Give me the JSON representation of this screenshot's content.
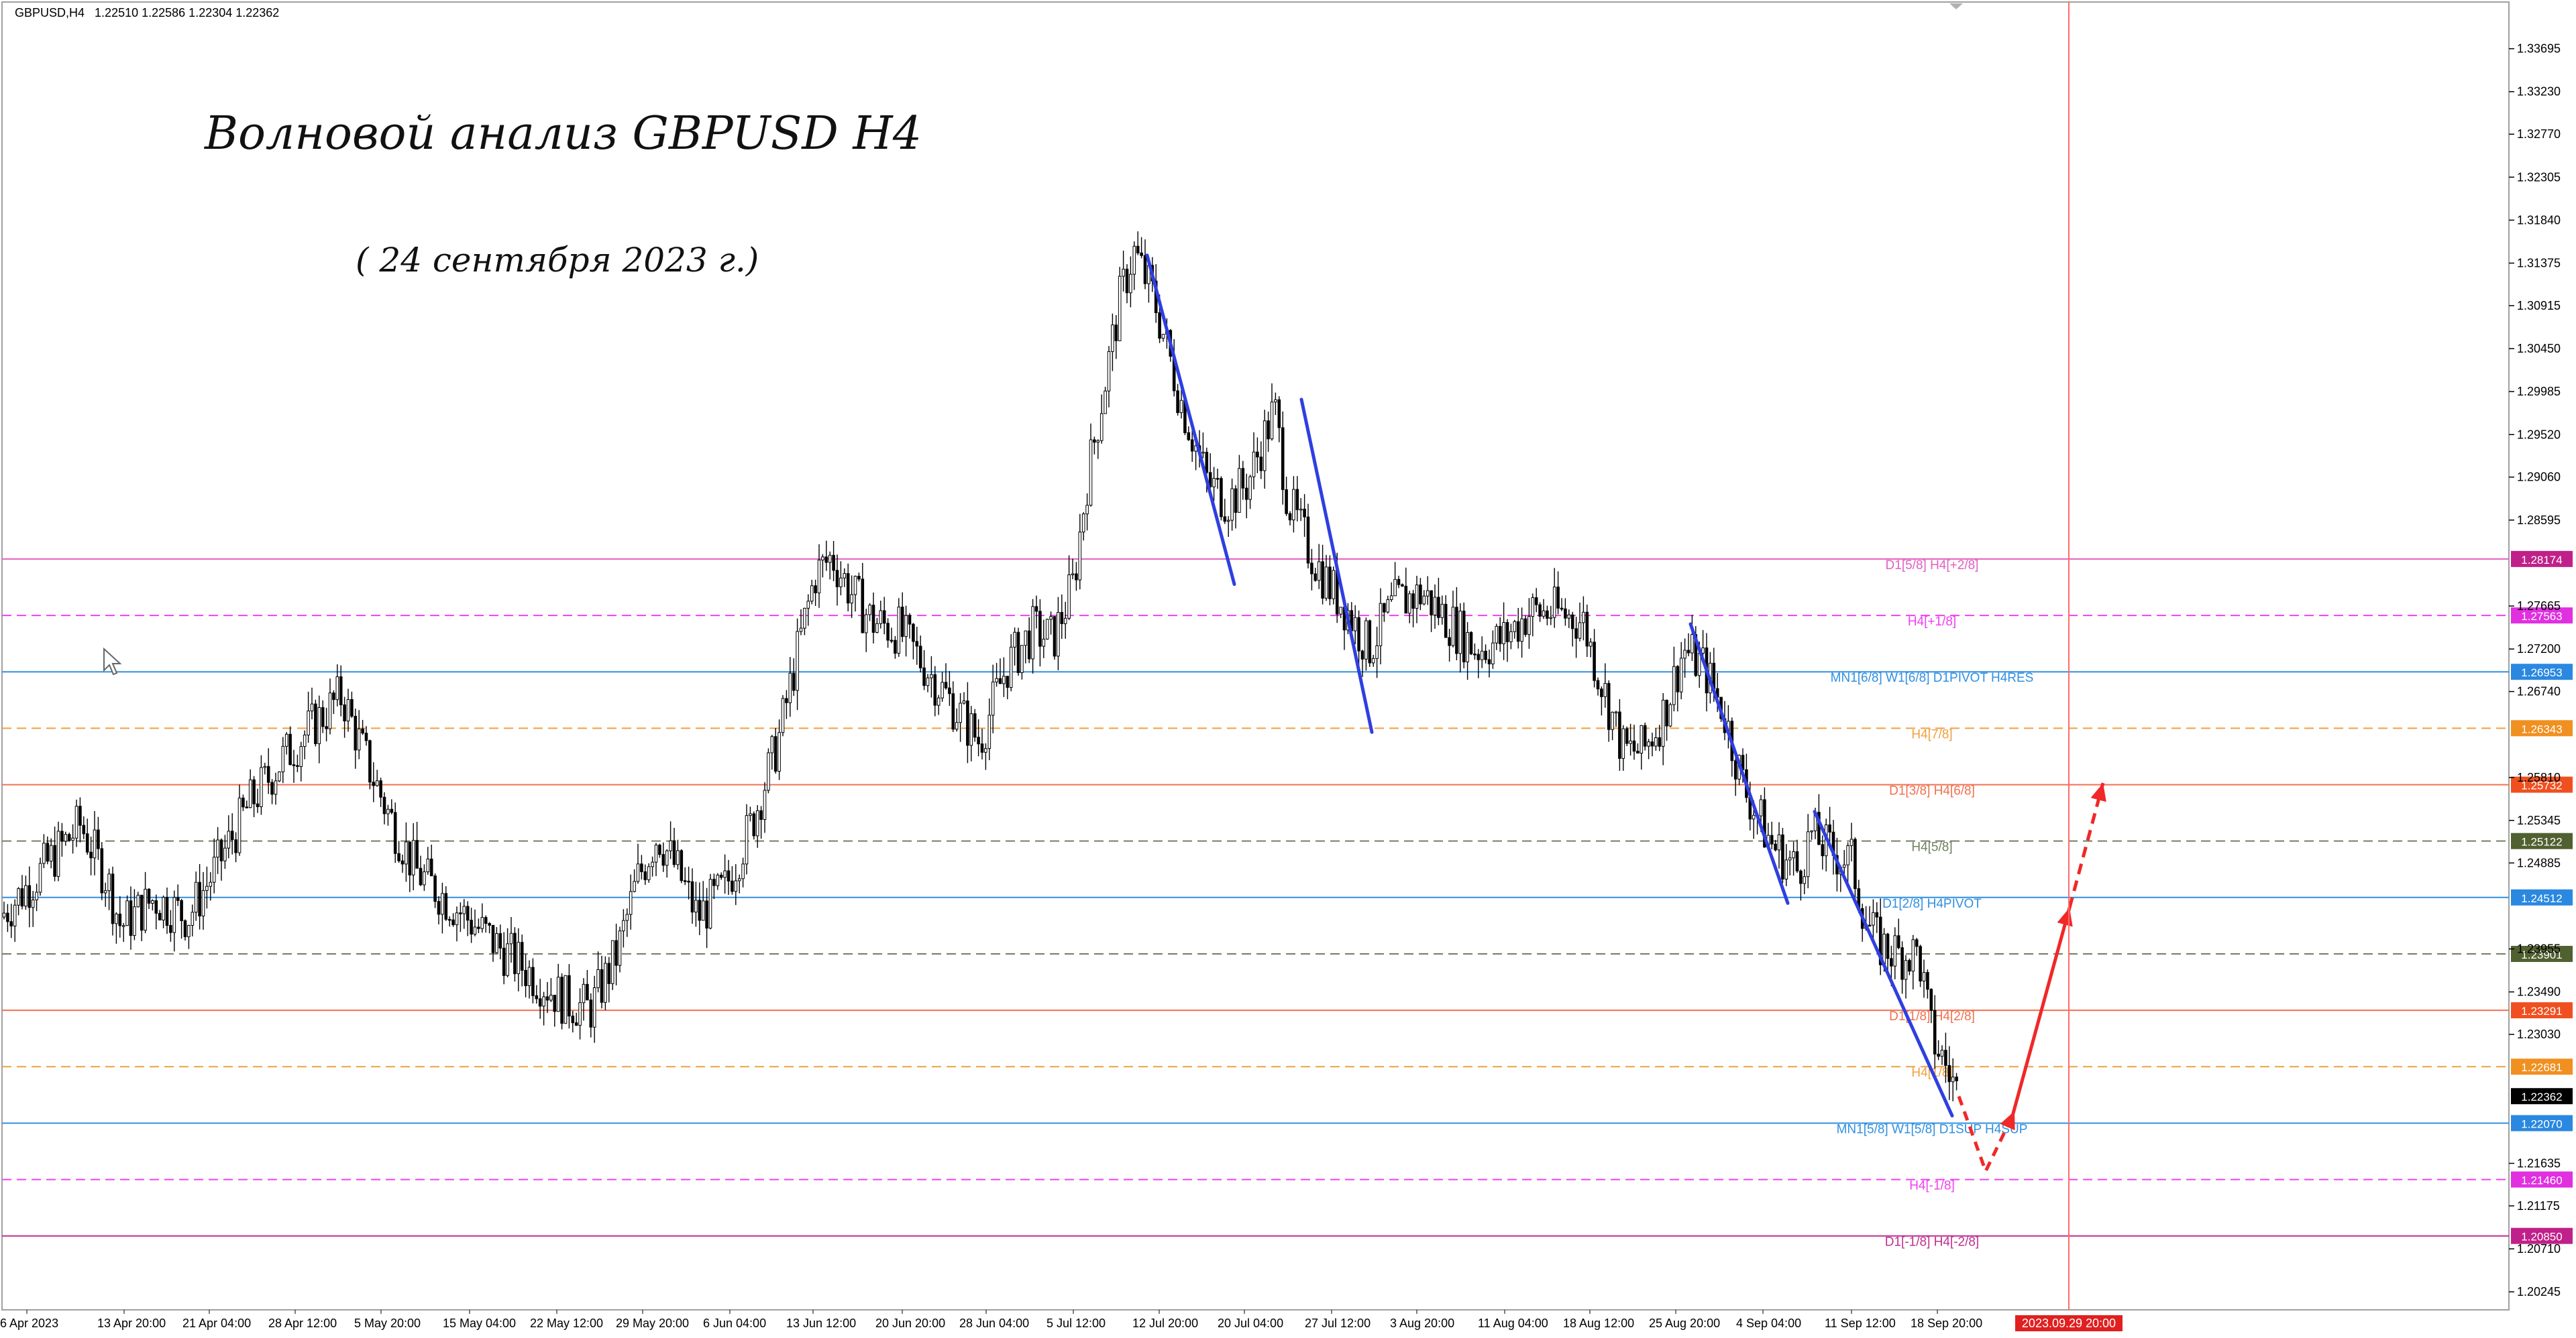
{
  "header": {
    "symbol": "GBPUSD,H4",
    "ohlc": "1.22510 1.22586 1.22304 1.22362"
  },
  "title": "Волновой анализ GBPUSD H4",
  "subtitle": "( 24 сентября 2023 г.)",
  "colors": {
    "candle": "#000000",
    "wave": "#2f3fe0",
    "forecast": "#f02828",
    "vline": "#ff6a6a",
    "grid": "#d8d8d8"
  },
  "chart_data": {
    "type": "candlestick",
    "ylim": [
      1.2005,
      1.342
    ],
    "y_ticks": [
      1.33695,
      1.3323,
      1.3277,
      1.32305,
      1.3184,
      1.31375,
      1.30915,
      1.3045,
      1.29985,
      1.2952,
      1.2906,
      1.28595,
      1.27665,
      1.272,
      1.2674,
      1.2581,
      1.25345,
      1.24885,
      1.23955,
      1.2349,
      1.2303,
      1.21635,
      1.21175,
      1.2071,
      1.20245
    ],
    "x_labels": [
      "6 Apr 2023",
      "13 Apr 20:00",
      "21 Apr 04:00",
      "28 Apr 12:00",
      "5 May 20:00",
      "15 May 04:00",
      "22 May 12:00",
      "29 May 20:00",
      "6 Jun 04:00",
      "13 Jun 12:00",
      "20 Jun 20:00",
      "28 Jun 04:00",
      "5 Jul 12:00",
      "12 Jul 20:00",
      "20 Jul 04:00",
      "27 Jul 12:00",
      "3 Aug 20:00",
      "11 Aug 04:00",
      "18 Aug 12:00",
      "25 Aug 20:00",
      "4 Sep 04:00",
      "11 Sep 12:00",
      "18 Sep 20:00"
    ],
    "price_path": [
      [
        0,
        1.243
      ],
      [
        50,
        1.247
      ],
      [
        120,
        1.253
      ],
      [
        160,
        1.247
      ],
      [
        180,
        1.242
      ],
      [
        230,
        1.245
      ],
      [
        280,
        1.243
      ],
      [
        320,
        1.248
      ],
      [
        370,
        1.255
      ],
      [
        420,
        1.26
      ],
      [
        470,
        1.264
      ],
      [
        510,
        1.267
      ],
      [
        540,
        1.261
      ],
      [
        580,
        1.254
      ],
      [
        620,
        1.248
      ],
      [
        680,
        1.244
      ],
      [
        740,
        1.24
      ],
      [
        790,
        1.237
      ],
      [
        840,
        1.234
      ],
      [
        880,
        1.233
      ],
      [
        920,
        1.239
      ],
      [
        950,
        1.247
      ],
      [
        980,
        1.252
      ],
      [
        1010,
        1.248
      ],
      [
        1040,
        1.243
      ],
      [
        1080,
        1.246
      ],
      [
        1120,
        1.253
      ],
      [
        1160,
        1.262
      ],
      [
        1190,
        1.272
      ],
      [
        1215,
        1.28
      ],
      [
        1240,
        1.282
      ],
      [
        1270,
        1.278
      ],
      [
        1300,
        1.275
      ],
      [
        1340,
        1.274
      ],
      [
        1380,
        1.27
      ],
      [
        1420,
        1.266
      ],
      [
        1460,
        1.262
      ],
      [
        1500,
        1.27
      ],
      [
        1540,
        1.274
      ],
      [
        1570,
        1.273
      ],
      [
        1600,
        1.279
      ],
      [
        1620,
        1.29
      ],
      [
        1650,
        1.302
      ],
      [
        1670,
        1.31
      ],
      [
        1690,
        1.315
      ],
      [
        1720,
        1.31
      ],
      [
        1760,
        1.299
      ],
      [
        1800,
        1.29
      ],
      [
        1830,
        1.288
      ],
      [
        1860,
        1.29
      ],
      [
        1900,
        1.298
      ],
      [
        1920,
        1.288
      ],
      [
        1950,
        1.283
      ],
      [
        1980,
        1.279
      ],
      [
        2010,
        1.276
      ],
      [
        2040,
        1.272
      ],
      [
        2080,
        1.277
      ],
      [
        2120,
        1.278
      ],
      [
        2160,
        1.275
      ],
      [
        2200,
        1.272
      ],
      [
        2240,
        1.273
      ],
      [
        2280,
        1.276
      ],
      [
        2320,
        1.276
      ],
      [
        2360,
        1.275
      ],
      [
        2380,
        1.27
      ],
      [
        2420,
        1.261
      ],
      [
        2450,
        1.261
      ],
      [
        2480,
        1.265
      ],
      [
        2510,
        1.272
      ],
      [
        2540,
        1.27
      ],
      [
        2570,
        1.265
      ],
      [
        2600,
        1.257
      ],
      [
        2640,
        1.251
      ],
      [
        2680,
        1.248
      ],
      [
        2700,
        1.252
      ],
      [
        2730,
        1.25
      ],
      [
        2760,
        1.249
      ],
      [
        2780,
        1.243
      ],
      [
        2800,
        1.24
      ],
      [
        2830,
        1.239
      ],
      [
        2860,
        1.239
      ],
      [
        2880,
        1.23
      ],
      [
        2900,
        1.227
      ],
      [
        2920,
        1.2236
      ]
    ],
    "price_levels": [
      {
        "price": 1.28174,
        "label": "D1[5/8] H4[+2/8]",
        "color": "#e060c0",
        "dash": false,
        "tag": "1.28174",
        "tag_bg": "#c0208a"
      },
      {
        "price": 1.27563,
        "label": "H4[+1/8]",
        "color": "#f040f0",
        "dash": true,
        "tag": "1.27563",
        "tag_bg": "#e030e0"
      },
      {
        "price": 1.26953,
        "label": "MN1[6/8] W1[6/8] D1PIVOT H4RES",
        "color": "#3090e0",
        "dash": false,
        "tag": "1.26953",
        "tag_bg": "#2a88e0"
      },
      {
        "price": 1.26343,
        "label": "H4[7/8]",
        "color": "#f0a040",
        "dash": true,
        "tag": "1.26343",
        "tag_bg": "#f09020"
      },
      {
        "price": 1.25732,
        "label": "D1[3/8] H4[6/8]",
        "color": "#f07050",
        "dash": false,
        "tag": "1.25732",
        "tag_bg": "#f05020"
      },
      {
        "price": 1.25122,
        "label": "H4[5/8]",
        "color": "#708060",
        "dash": true,
        "tag": "1.25122",
        "tag_bg": "#506030"
      },
      {
        "price": 1.24512,
        "label": "D1[2/8] H4PIVOT",
        "color": "#3090e0",
        "dash": false,
        "tag": "1.24512",
        "tag_bg": "#2a88e0"
      },
      {
        "price": 1.23901,
        "label": "",
        "color": "#708060",
        "dash": true,
        "tag": "1.23901",
        "tag_bg": "#506030"
      },
      {
        "price": 1.23291,
        "label": "D1[1/8] H4[2/8]",
        "color": "#f07050",
        "dash": false,
        "tag": "1.23291",
        "tag_bg": "#f05020"
      },
      {
        "price": 1.22681,
        "label": "H4[1/8]",
        "color": "#f0a040",
        "dash": true,
        "tag": "1.22681",
        "tag_bg": "#f09020"
      },
      {
        "price": 1.2207,
        "label": "MN1[5/8] W1[5/8] D1SUP H4SUP",
        "color": "#3090e0",
        "dash": false,
        "tag": "1.22070",
        "tag_bg": "#2a88e0"
      },
      {
        "price": 1.2146,
        "label": "H4[-1/8]",
        "color": "#f040f0",
        "dash": true,
        "tag": "1.21460",
        "tag_bg": "#e030e0"
      },
      {
        "price": 1.2085,
        "label": "D1[-1/8] H4[-2/8]",
        "color": "#c03090",
        "dash": false,
        "tag": "1.20850",
        "tag_bg": "#c0208a"
      }
    ],
    "current_price": {
      "price": 1.22362,
      "tag": "1.22362"
    },
    "vline_label": "2023.09.29 20:00",
    "wave_lines": [
      [
        [
          1710,
          1.3146
        ],
        [
          1840,
          1.279
        ]
      ],
      [
        [
          1940,
          1.299
        ],
        [
          2045,
          1.263
        ]
      ],
      [
        [
          2520,
          1.2747
        ],
        [
          2665,
          1.2445
        ]
      ],
      [
        [
          2705,
          1.2544
        ],
        [
          2910,
          1.2215
        ]
      ]
    ],
    "forecast_path": [
      [
        2920,
        1.2236
      ],
      [
        2960,
        1.2155
      ],
      [
        3000,
        1.2215
      ]
    ],
    "forecast_up": [
      [
        3000,
        1.2215
      ],
      [
        3085,
        1.244
      ]
    ],
    "forecast_up_dash": [
      [
        3085,
        1.244
      ],
      [
        3135,
        1.2575
      ]
    ]
  }
}
